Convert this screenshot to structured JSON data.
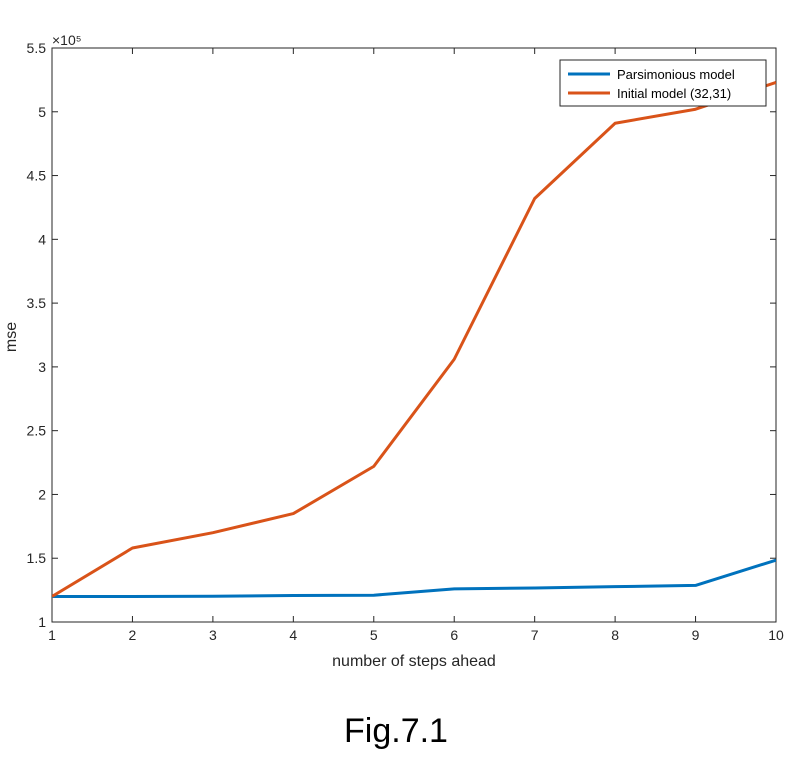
{
  "chart_data": {
    "type": "line",
    "x": [
      1,
      2,
      3,
      4,
      5,
      6,
      7,
      8,
      9,
      10
    ],
    "series": [
      {
        "name": "Parsimonious model",
        "color": "#0072BD",
        "values": [
          120000,
          120000,
          120200,
          120800,
          121000,
          126000,
          126700,
          127700,
          128700,
          148500
        ]
      },
      {
        "name": "Initial model (32,31)",
        "color": "#D95319",
        "values": [
          120000,
          158000,
          170000,
          185000,
          222000,
          306000,
          432000,
          491000,
          502000,
          523000
        ]
      }
    ],
    "xlabel": "number of steps ahead",
    "ylabel": "mse",
    "xlim": [
      1,
      10
    ],
    "ylim": [
      100000,
      550000
    ],
    "x_ticks": [
      1,
      2,
      3,
      4,
      5,
      6,
      7,
      8,
      9,
      10
    ],
    "x_tick_labels": [
      "1",
      "2",
      "3",
      "4",
      "5",
      "6",
      "7",
      "8",
      "9",
      "10"
    ],
    "y_ticks": [
      100000,
      150000,
      200000,
      250000,
      300000,
      350000,
      400000,
      450000,
      500000,
      550000
    ],
    "y_tick_labels": [
      "1",
      "1.5",
      "2",
      "2.5",
      "3",
      "3.5",
      "4",
      "4.5",
      "5",
      "5.5"
    ],
    "y_exponent_label": "×10⁵",
    "grid": false,
    "legend_position": "top-right"
  },
  "caption": "Fig.7.1"
}
